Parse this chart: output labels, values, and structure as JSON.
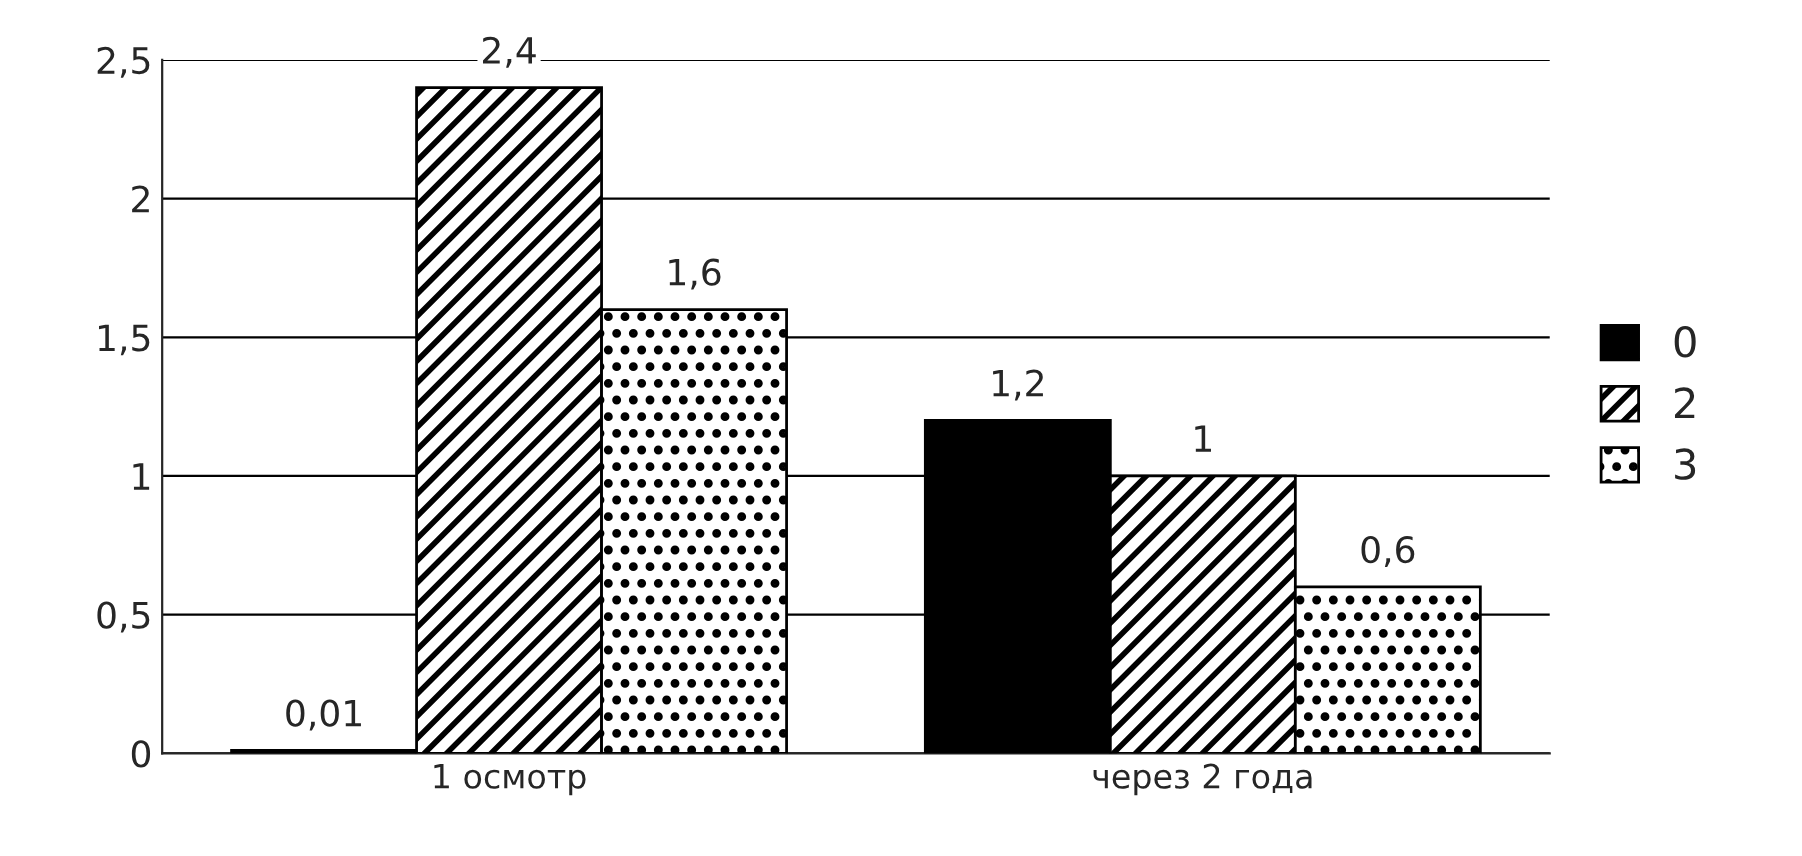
{
  "chart_data": {
    "type": "bar",
    "categories": [
      "1 осмотр",
      "через 2 года"
    ],
    "series": [
      {
        "name": "0",
        "color": "#000000",
        "values": [
          0.01,
          1.2
        ],
        "value_labels": [
          "0,01",
          "1,2"
        ]
      },
      {
        "name": "2",
        "color": "#000000",
        "values": [
          2.4,
          1
        ],
        "value_labels": [
          "2,4",
          "1"
        ]
      },
      {
        "name": "3",
        "color": "#000000",
        "values": [
          1.6,
          0.6
        ],
        "value_labels": [
          "1,6",
          "0,6"
        ]
      }
    ],
    "ylim": [
      0,
      2.5
    ],
    "yticks": [
      0,
      {
        "value": 0.5,
        "label": "0,5"
      },
      1,
      {
        "value": 1.5,
        "label": "1,5"
      },
      2,
      {
        "value": 2.5,
        "label": "2,5"
      }
    ],
    "grid": "y",
    "legend": "right"
  }
}
